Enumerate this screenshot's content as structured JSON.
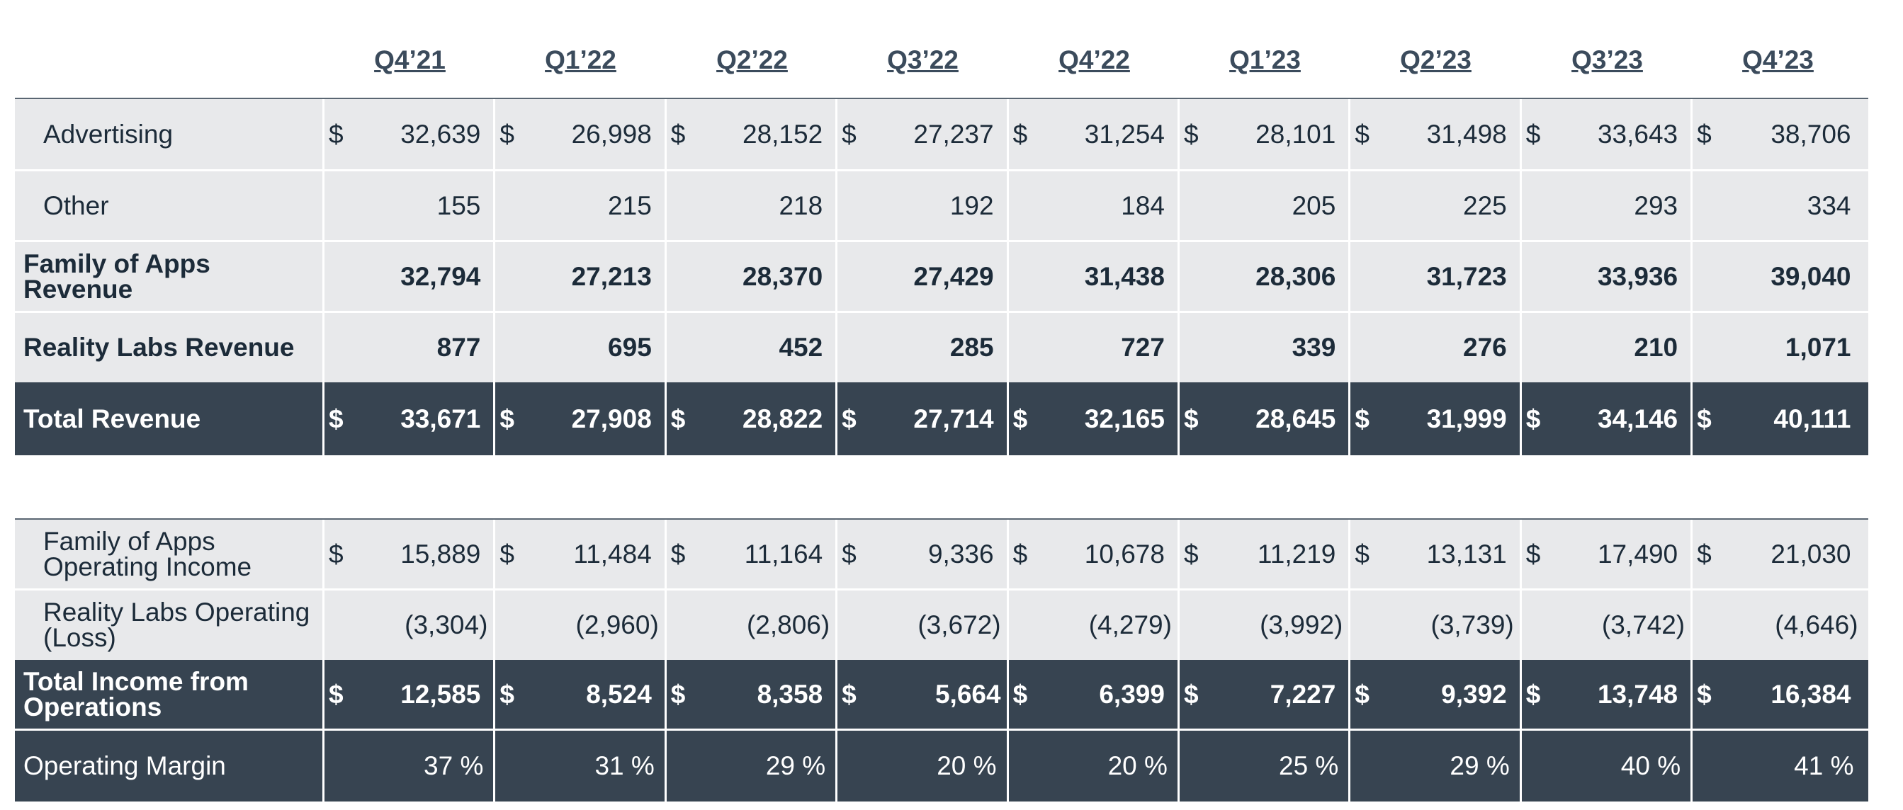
{
  "quarters": [
    "Q4’21",
    "Q1’22",
    "Q2’22",
    "Q3’22",
    "Q4’22",
    "Q1’23",
    "Q2’23",
    "Q3’23",
    "Q4’23"
  ],
  "revenue": {
    "rows": [
      {
        "label": "Advertising",
        "currency": "$",
        "values": [
          "32,639",
          "26,998",
          "28,152",
          "27,237",
          "31,254",
          "28,101",
          "31,498",
          "33,643",
          "38,706"
        ]
      },
      {
        "label": "Other",
        "currency": "",
        "values": [
          "155",
          "215",
          "218",
          "192",
          "184",
          "205",
          "225",
          "293",
          "334"
        ]
      },
      {
        "label": "Family of Apps Revenue",
        "currency": "",
        "values": [
          "32,794",
          "27,213",
          "28,370",
          "27,429",
          "31,438",
          "28,306",
          "31,723",
          "33,936",
          "39,040"
        ]
      },
      {
        "label": "Reality Labs Revenue",
        "currency": "",
        "values": [
          "877",
          "695",
          "452",
          "285",
          "727",
          "339",
          "276",
          "210",
          "1,071"
        ]
      },
      {
        "label": "Total Revenue",
        "currency": "$",
        "values": [
          "33,671",
          "27,908",
          "28,822",
          "27,714",
          "32,165",
          "28,645",
          "31,999",
          "34,146",
          "40,111"
        ]
      }
    ]
  },
  "operating": {
    "rows": [
      {
        "label": "Family of Apps Operating Income",
        "currency": "$",
        "values": [
          "15,889",
          "11,484",
          "11,164",
          "9,336",
          "10,678",
          "11,219",
          "13,131",
          "17,490",
          "21,030"
        ]
      },
      {
        "label": "Reality Labs Operating (Loss)",
        "currency": "",
        "values": [
          "(3,304)",
          "(2,960)",
          "(2,806)",
          "(3,672)",
          "(4,279)",
          "(3,992)",
          "(3,739)",
          "(3,742)",
          "(4,646)"
        ]
      },
      {
        "label": "Total Income from Operations",
        "currency": "$",
        "values": [
          "12,585",
          "8,524",
          "8,358",
          "5,664",
          "6,399",
          "7,227",
          "9,392",
          "13,748",
          "16,384"
        ]
      },
      {
        "label": "Operating Margin",
        "currency": "",
        "values": [
          "37 %",
          "31 %",
          "29 %",
          "20 %",
          "20 %",
          "25 %",
          "29 %",
          "40 %",
          "41 %"
        ]
      }
    ]
  },
  "colors": {
    "dark_row": "#374451",
    "light_row": "#e8e9eb",
    "header_text": "#3b4b5c"
  }
}
